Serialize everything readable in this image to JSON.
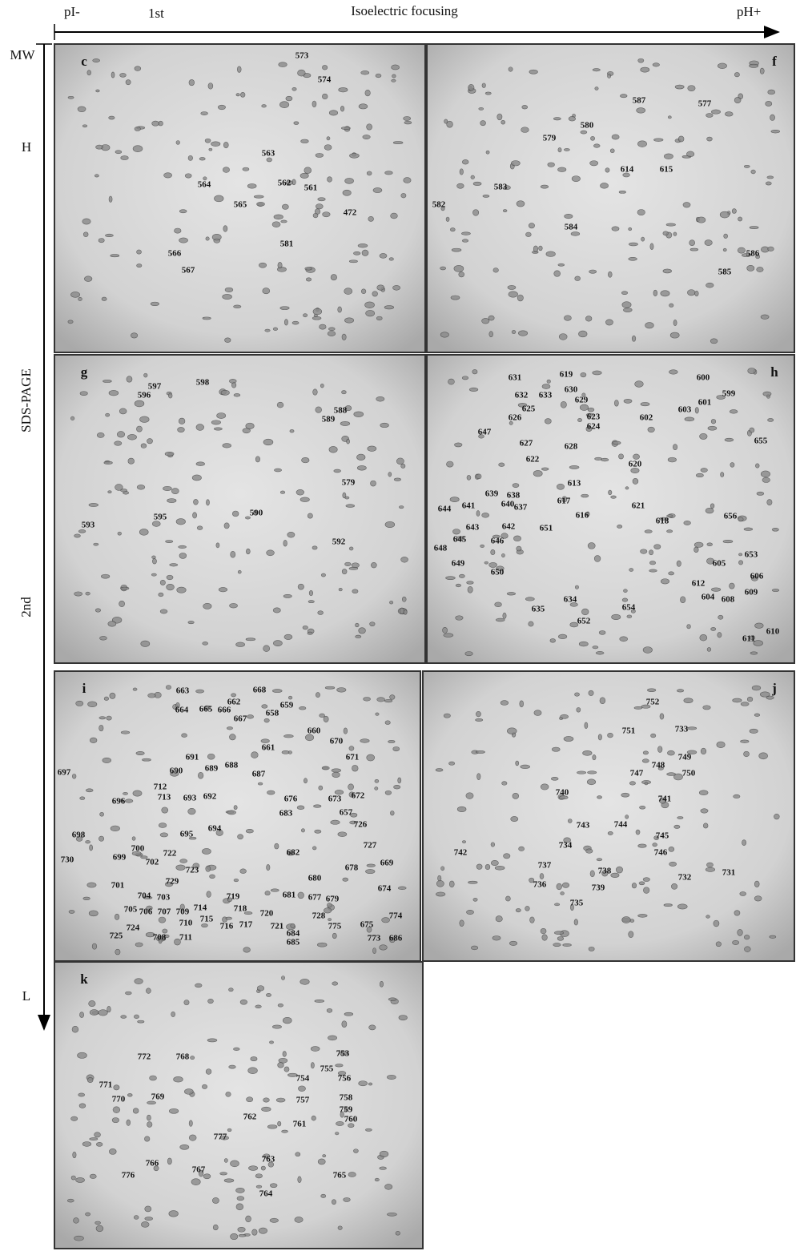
{
  "header": {
    "pi_minus": "pI-",
    "first": "1st",
    "axis_title": "Isoelectric focusing",
    "ph_plus": "pH+"
  },
  "side": {
    "mw": "MW",
    "h": "H",
    "sds_page": "SDS-PAGE",
    "second": "2nd",
    "l": "L"
  },
  "panels": [
    {
      "letter": "c",
      "spots": [
        "573",
        "574",
        "563",
        "564",
        "562",
        "561",
        "565",
        "472",
        "581",
        "566",
        "567"
      ]
    },
    {
      "letter": "f",
      "spots": [
        "587",
        "577",
        "580",
        "579",
        "614",
        "615",
        "583",
        "582",
        "584",
        "586",
        "585"
      ]
    },
    {
      "letter": "g",
      "spots": [
        "597",
        "596",
        "598",
        "588",
        "589",
        "579",
        "590",
        "595",
        "593",
        "592"
      ]
    },
    {
      "letter": "h",
      "spots": [
        "631",
        "619",
        "600",
        "632",
        "633",
        "630",
        "599",
        "629",
        "601",
        "625",
        "603",
        "626",
        "623",
        "602",
        "624",
        "647",
        "655",
        "627",
        "628",
        "622",
        "620",
        "613",
        "639",
        "638",
        "640",
        "617",
        "637",
        "621",
        "644",
        "641",
        "616",
        "618",
        "656",
        "643",
        "642",
        "651",
        "645",
        "646",
        "648",
        "653",
        "605",
        "649",
        "650",
        "606",
        "612",
        "609",
        "604",
        "608",
        "634",
        "654",
        "635",
        "652",
        "610",
        "611"
      ]
    },
    {
      "letter": "i",
      "spots": [
        "663",
        "668",
        "662",
        "664",
        "665",
        "666",
        "659",
        "658",
        "667",
        "660",
        "661",
        "691",
        "670",
        "697",
        "690",
        "689",
        "688",
        "687",
        "671",
        "712",
        "713",
        "693",
        "692",
        "676",
        "673",
        "672",
        "696",
        "683",
        "657",
        "694",
        "695",
        "726",
        "698",
        "727",
        "700",
        "722",
        "682",
        "669",
        "730",
        "699",
        "702",
        "723",
        "678",
        "680",
        "729",
        "701",
        "674",
        "704",
        "703",
        "719",
        "681",
        "677",
        "679",
        "718",
        "714",
        "705",
        "706",
        "707",
        "709",
        "715",
        "720",
        "728",
        "774",
        "724",
        "710",
        "716",
        "717",
        "721",
        "775",
        "675",
        "684",
        "711",
        "708",
        "773",
        "686",
        "725",
        "685"
      ]
    },
    {
      "letter": "j",
      "spots": [
        "752",
        "751",
        "733",
        "749",
        "748",
        "747",
        "750",
        "740",
        "741",
        "743",
        "744",
        "745",
        "734",
        "746",
        "742",
        "737",
        "738",
        "732",
        "731",
        "736",
        "739",
        "735"
      ]
    },
    {
      "letter": "k",
      "spots": [
        "753",
        "772",
        "768",
        "755",
        "756",
        "754",
        "771",
        "769",
        "770",
        "758",
        "757",
        "759",
        "760",
        "762",
        "761",
        "777",
        "763",
        "766",
        "767",
        "776",
        "765",
        "764"
      ]
    }
  ]
}
